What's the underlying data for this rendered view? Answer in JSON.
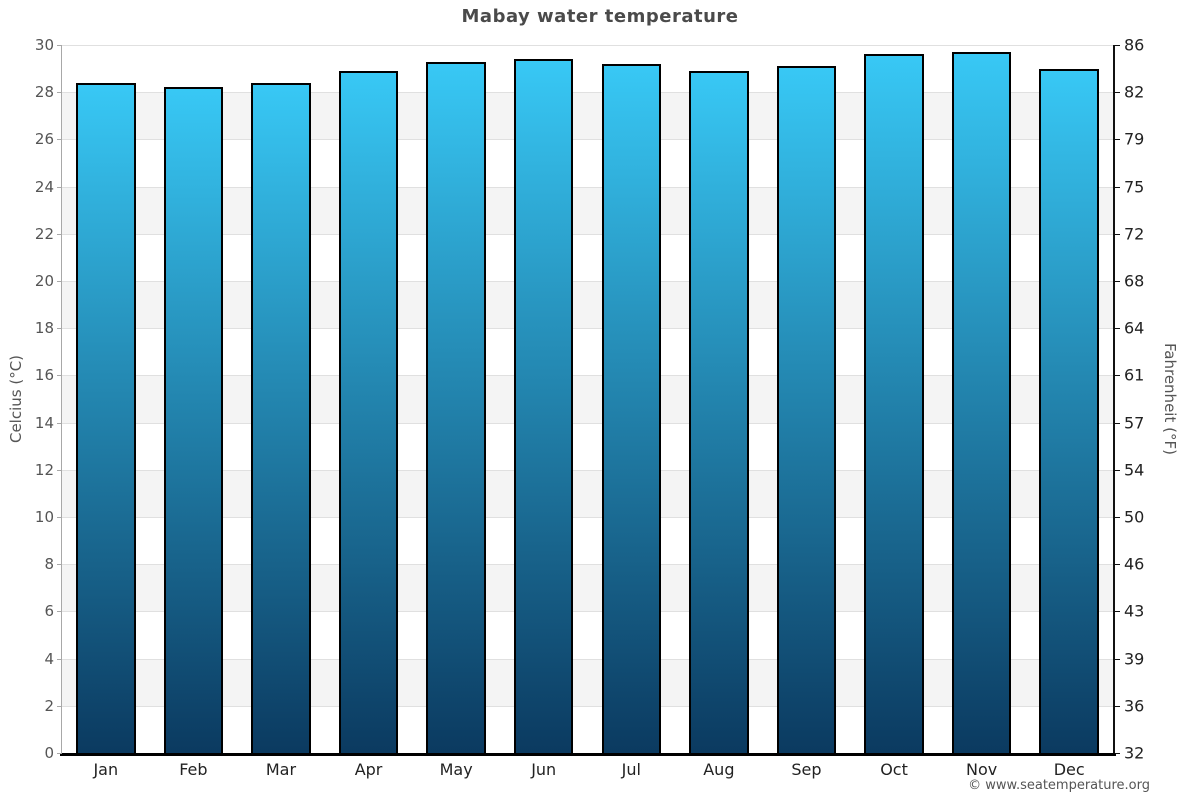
{
  "page": {
    "title": "Mabay water temperature",
    "copyright": "© www.seatemperature.org"
  },
  "chart_data": {
    "type": "bar",
    "title": "Mabay water temperature",
    "categories": [
      "Jan",
      "Feb",
      "Mar",
      "Apr",
      "May",
      "Jun",
      "Jul",
      "Aug",
      "Sep",
      "Oct",
      "Nov",
      "Dec"
    ],
    "values": [
      28.4,
      28.2,
      28.4,
      28.9,
      29.3,
      29.4,
      29.2,
      28.9,
      29.1,
      29.6,
      29.7,
      29.0
    ],
    "series_name": "Water temperature (°C)",
    "xlabel": "",
    "ylabel_left": "Celcius (°C)",
    "ylabel_right": "Fahrenheit (°F)",
    "ylim": [
      0,
      30
    ],
    "tick_step_celsius": 2,
    "left_tick_labels": [
      "30",
      "28",
      "26",
      "24",
      "22",
      "20",
      "18",
      "16",
      "14",
      "12",
      "10",
      "8",
      "6",
      "4",
      "2",
      "0"
    ],
    "right_tick_labels": [
      "86",
      "82",
      "79",
      "75",
      "72",
      "68",
      "64",
      "61",
      "57",
      "54",
      "50",
      "46",
      "43",
      "39",
      "36",
      "32"
    ],
    "legend": "none",
    "grid": "horizontal gridlines with alternating shaded bands every 2°C",
    "colors": {
      "bar_gradient_top": "#38c8f5",
      "bar_gradient_bottom": "#0b3a60",
      "bar_border": "#000000",
      "band_shade": "#f4f4f4",
      "gridline": "#e0e0e0",
      "title_text": "#4a4a4a",
      "axis_text": "#555555",
      "category_text": "#222222"
    }
  }
}
